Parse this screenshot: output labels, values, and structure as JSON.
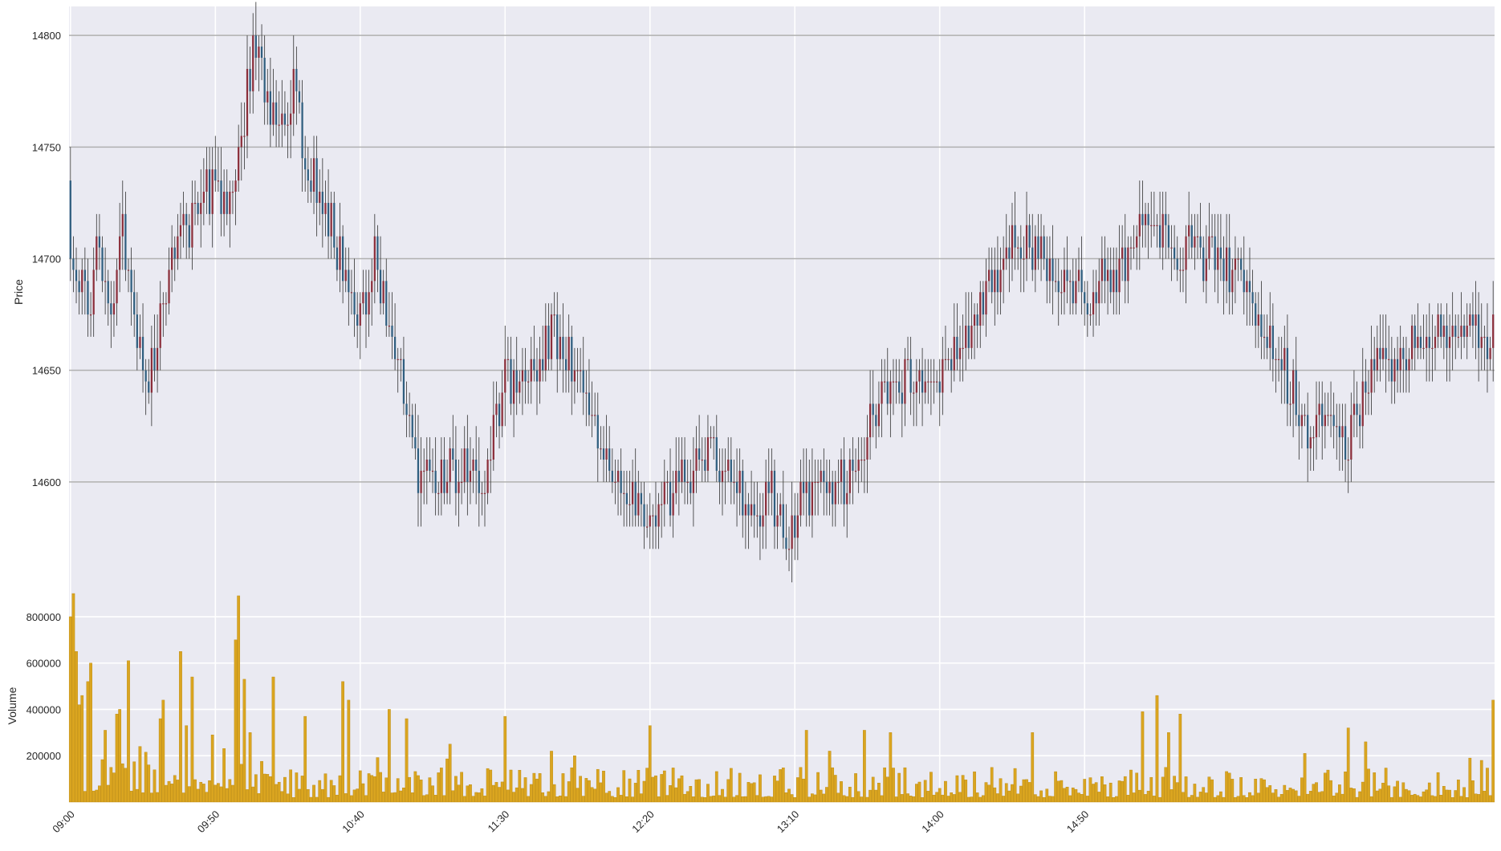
{
  "chart_data": [
    {
      "type": "candlestick",
      "panel": "price",
      "ylabel": "Price",
      "yticks": [
        14600,
        14650,
        14700,
        14750,
        14800
      ],
      "ylim": [
        14550,
        14813
      ],
      "interval_minutes": 1,
      "colors": {
        "up": "#8b2e3a",
        "down": "#2f5e7f",
        "wick": "#303030",
        "background": "#eaeaf2",
        "grid": "#ffffff",
        "hline": "#b0b0b0"
      },
      "start_close": 14695,
      "grid": true,
      "anchors": [
        [
          0,
          14700
        ],
        [
          6,
          14680
        ],
        [
          10,
          14705
        ],
        [
          14,
          14670
        ],
        [
          18,
          14710
        ],
        [
          22,
          14675
        ],
        [
          27,
          14645
        ],
        [
          34,
          14695
        ],
        [
          40,
          14715
        ],
        [
          48,
          14730
        ],
        [
          55,
          14725
        ],
        [
          60,
          14765
        ],
        [
          64,
          14795
        ],
        [
          68,
          14770
        ],
        [
          72,
          14755
        ],
        [
          77,
          14780
        ],
        [
          82,
          14740
        ],
        [
          88,
          14720
        ],
        [
          95,
          14695
        ],
        [
          100,
          14675
        ],
        [
          105,
          14700
        ],
        [
          112,
          14655
        ],
        [
          120,
          14605
        ],
        [
          128,
          14600
        ],
        [
          135,
          14610
        ],
        [
          142,
          14600
        ],
        [
          150,
          14645
        ],
        [
          160,
          14650
        ],
        [
          167,
          14665
        ],
        [
          174,
          14650
        ],
        [
          182,
          14620
        ],
        [
          190,
          14605
        ],
        [
          198,
          14575
        ],
        [
          208,
          14598
        ],
        [
          216,
          14610
        ],
        [
          222,
          14615
        ],
        [
          230,
          14595
        ],
        [
          236,
          14580
        ],
        [
          242,
          14595
        ],
        [
          248,
          14575
        ],
        [
          256,
          14600
        ],
        [
          262,
          14590
        ],
        [
          270,
          14605
        ],
        [
          280,
          14640
        ],
        [
          290,
          14645
        ],
        [
          300,
          14650
        ],
        [
          310,
          14665
        ],
        [
          318,
          14685
        ],
        [
          326,
          14705
        ],
        [
          334,
          14700
        ],
        [
          342,
          14690
        ],
        [
          350,
          14680
        ],
        [
          358,
          14690
        ],
        [
          366,
          14705
        ],
        [
          373,
          14725
        ],
        [
          380,
          14700
        ],
        [
          388,
          14705
        ],
        [
          396,
          14695
        ],
        [
          404,
          14695
        ],
        [
          412,
          14665
        ],
        [
          420,
          14645
        ],
        [
          428,
          14615
        ],
        [
          434,
          14630
        ],
        [
          440,
          14615
        ],
        [
          446,
          14640
        ],
        [
          452,
          14650
        ],
        [
          460,
          14655
        ],
        [
          468,
          14665
        ],
        [
          476,
          14670
        ],
        [
          484,
          14670
        ],
        [
          490,
          14665
        ]
      ]
    },
    {
      "type": "bar",
      "panel": "volume",
      "ylabel": "Volume",
      "yticks": [
        200000,
        400000,
        600000,
        800000
      ],
      "ylim": [
        0,
        900000
      ],
      "bar_color": "#daa520",
      "bar_edge_color": "#b8860b",
      "xticks": [
        "09:00",
        "09:50",
        "10:40",
        "11:30",
        "12:20",
        "13:10",
        "14:00",
        "14:50"
      ],
      "grid": true,
      "peaks": [
        [
          0,
          800000
        ],
        [
          1,
          900000
        ],
        [
          2,
          650000
        ],
        [
          3,
          420000
        ],
        [
          4,
          460000
        ],
        [
          6,
          520000
        ],
        [
          7,
          600000
        ],
        [
          12,
          310000
        ],
        [
          16,
          380000
        ],
        [
          17,
          400000
        ],
        [
          20,
          610000
        ],
        [
          24,
          240000
        ],
        [
          31,
          360000
        ],
        [
          32,
          440000
        ],
        [
          38,
          650000
        ],
        [
          40,
          330000
        ],
        [
          42,
          540000
        ],
        [
          49,
          290000
        ],
        [
          57,
          700000
        ],
        [
          58,
          890000
        ],
        [
          60,
          530000
        ],
        [
          62,
          300000
        ],
        [
          70,
          540000
        ],
        [
          81,
          370000
        ],
        [
          94,
          520000
        ],
        [
          96,
          440000
        ],
        [
          110,
          400000
        ],
        [
          116,
          360000
        ],
        [
          131,
          250000
        ],
        [
          150,
          370000
        ],
        [
          166,
          220000
        ],
        [
          174,
          200000
        ],
        [
          200,
          330000
        ],
        [
          254,
          310000
        ],
        [
          262,
          220000
        ],
        [
          274,
          310000
        ],
        [
          283,
          300000
        ],
        [
          332,
          300000
        ],
        [
          370,
          390000
        ],
        [
          375,
          460000
        ],
        [
          379,
          300000
        ],
        [
          383,
          380000
        ],
        [
          426,
          210000
        ],
        [
          441,
          320000
        ],
        [
          447,
          260000
        ],
        [
          483,
          190000
        ],
        [
          487,
          180000
        ],
        [
          491,
          440000
        ]
      ]
    }
  ]
}
